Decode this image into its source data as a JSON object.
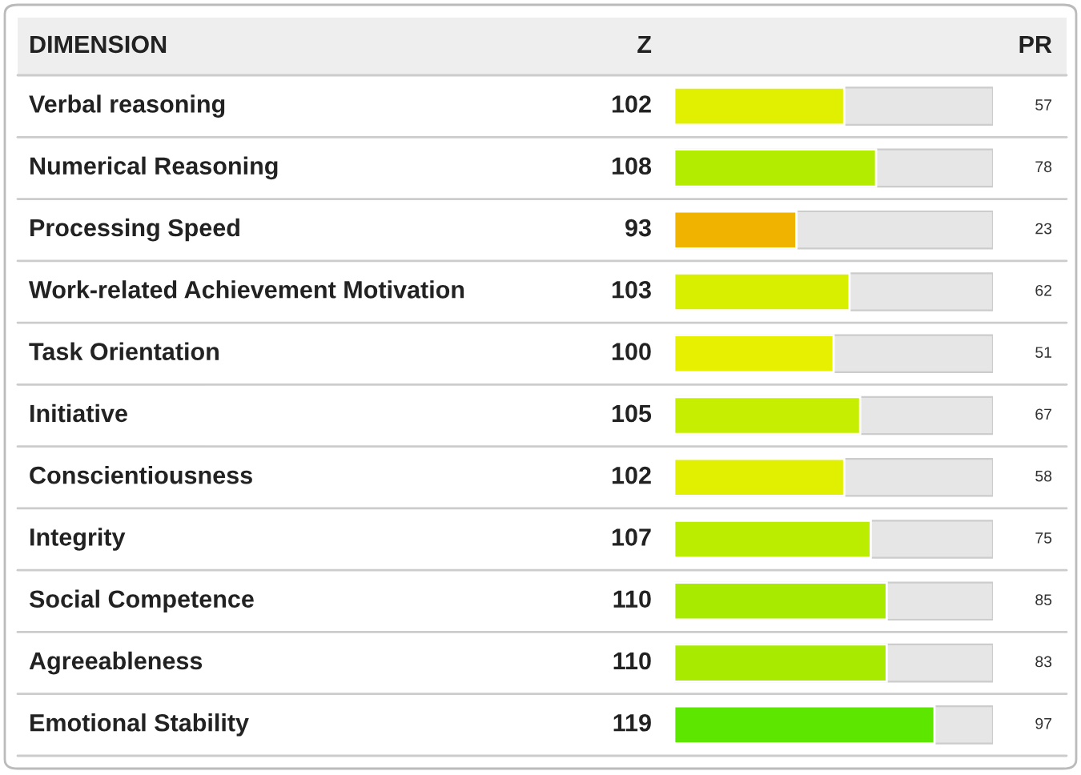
{
  "chart_data": {
    "type": "bar",
    "orientation": "horizontal",
    "categories": [
      "Verbal reasoning",
      "Numerical Reasoning",
      "Processing Speed",
      "Work-related Achievement Motivation",
      "Task Orientation",
      "Initiative",
      "Conscientiousness",
      "Integrity",
      "Social Competence",
      "Agreeableness",
      "Emotional Stability"
    ],
    "values": [
      102,
      108,
      93,
      103,
      100,
      105,
      102,
      107,
      110,
      110,
      119
    ],
    "colors": [
      "#e1f000",
      "#b4ec00",
      "#f0b400",
      "#d9ef00",
      "#e6f000",
      "#c6ee00",
      "#e1f000",
      "#bbed00",
      "#a9eb00",
      "#a9eb00",
      "#5ce600"
    ],
    "xlim": [
      70,
      130
    ],
    "data_labels": true,
    "ylabel": "DIMENSION",
    "xlabel": "Z",
    "y2label": "PR",
    "annotations": [
      "57",
      "78",
      "23",
      "62",
      "51",
      "67",
      "58",
      "75",
      "85",
      "83",
      "97"
    ]
  }
}
